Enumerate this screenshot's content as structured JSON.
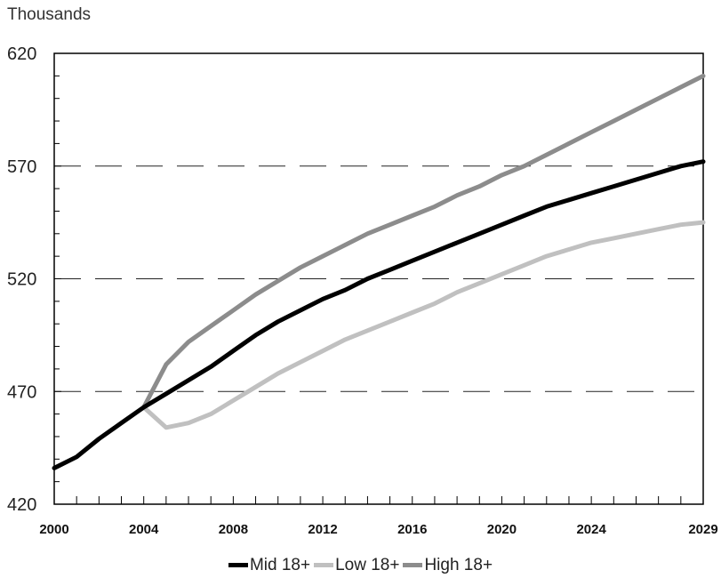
{
  "chart_data": {
    "type": "line",
    "unit_label": "Thousands",
    "x": [
      2000,
      2001,
      2002,
      2003,
      2004,
      2005,
      2006,
      2007,
      2008,
      2009,
      2010,
      2011,
      2012,
      2013,
      2014,
      2015,
      2016,
      2017,
      2018,
      2019,
      2020,
      2021,
      2022,
      2023,
      2024,
      2025,
      2026,
      2027,
      2028,
      2029
    ],
    "xticks": [
      2000,
      2004,
      2008,
      2012,
      2016,
      2020,
      2024,
      2029
    ],
    "yticks": [
      420,
      470,
      520,
      570,
      620
    ],
    "xlim": [
      2000,
      2029
    ],
    "ylim": [
      420,
      620
    ],
    "grid": "dashed horizontal at 470, 520, 570",
    "legend_position": "bottom",
    "series": [
      {
        "name": "Mid 18+",
        "color": "#000000",
        "values": [
          436,
          441,
          449,
          456,
          463,
          469,
          475,
          481,
          488,
          495,
          501,
          506,
          511,
          515,
          520,
          524,
          528,
          532,
          536,
          540,
          544,
          548,
          552,
          555,
          558,
          561,
          564,
          567,
          570,
          572
        ]
      },
      {
        "name": "Low 18+",
        "color": "#c0c0c0",
        "values": [
          null,
          null,
          null,
          null,
          463,
          454,
          456,
          460,
          466,
          472,
          478,
          483,
          488,
          493,
          497,
          501,
          505,
          509,
          514,
          518,
          522,
          526,
          530,
          533,
          536,
          538,
          540,
          542,
          544,
          545
        ]
      },
      {
        "name": "High 18+",
        "color": "#8c8c8c",
        "values": [
          null,
          null,
          null,
          null,
          463,
          482,
          492,
          499,
          506,
          513,
          519,
          525,
          530,
          535,
          540,
          544,
          548,
          552,
          557,
          561,
          566,
          570,
          575,
          580,
          585,
          590,
          595,
          600,
          605,
          610
        ]
      }
    ]
  }
}
